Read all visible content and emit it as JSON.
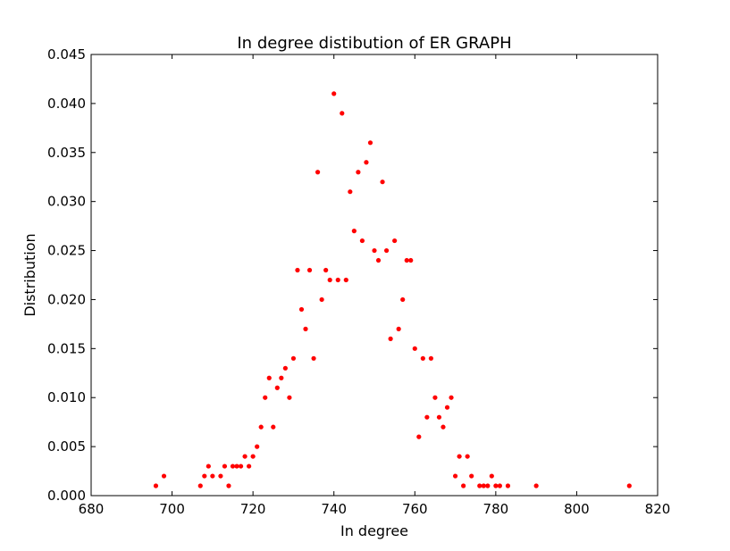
{
  "chart_data": {
    "type": "scatter",
    "title": "In degree distibution of ER GRAPH",
    "xlabel": "In degree",
    "ylabel": "Distribution",
    "xlim": [
      680,
      820
    ],
    "ylim": [
      0,
      0.045
    ],
    "xticks": [
      "680",
      "700",
      "720",
      "740",
      "760",
      "780",
      "800",
      "820"
    ],
    "yticks": [
      "0.000",
      "0.005",
      "0.010",
      "0.015",
      "0.020",
      "0.025",
      "0.030",
      "0.035",
      "0.040",
      "0.045"
    ],
    "grid": false,
    "marker_color": "#ff0000",
    "points": [
      [
        696,
        0.001
      ],
      [
        698,
        0.002
      ],
      [
        707,
        0.001
      ],
      [
        708,
        0.002
      ],
      [
        709,
        0.003
      ],
      [
        710,
        0.002
      ],
      [
        712,
        0.002
      ],
      [
        713,
        0.003
      ],
      [
        714,
        0.001
      ],
      [
        715,
        0.003
      ],
      [
        716,
        0.003
      ],
      [
        717,
        0.003
      ],
      [
        718,
        0.004
      ],
      [
        719,
        0.003
      ],
      [
        720,
        0.004
      ],
      [
        721,
        0.005
      ],
      [
        722,
        0.007
      ],
      [
        723,
        0.01
      ],
      [
        724,
        0.012
      ],
      [
        725,
        0.007
      ],
      [
        726,
        0.011
      ],
      [
        727,
        0.012
      ],
      [
        728,
        0.013
      ],
      [
        729,
        0.01
      ],
      [
        730,
        0.014
      ],
      [
        731,
        0.023
      ],
      [
        732,
        0.019
      ],
      [
        733,
        0.017
      ],
      [
        734,
        0.023
      ],
      [
        735,
        0.014
      ],
      [
        736,
        0.033
      ],
      [
        737,
        0.02
      ],
      [
        738,
        0.023
      ],
      [
        739,
        0.022
      ],
      [
        740,
        0.041
      ],
      [
        741,
        0.022
      ],
      [
        742,
        0.039
      ],
      [
        743,
        0.022
      ],
      [
        744,
        0.031
      ],
      [
        745,
        0.027
      ],
      [
        746,
        0.033
      ],
      [
        747,
        0.026
      ],
      [
        748,
        0.034
      ],
      [
        749,
        0.036
      ],
      [
        750,
        0.025
      ],
      [
        751,
        0.024
      ],
      [
        752,
        0.032
      ],
      [
        753,
        0.025
      ],
      [
        754,
        0.016
      ],
      [
        755,
        0.026
      ],
      [
        756,
        0.017
      ],
      [
        757,
        0.02
      ],
      [
        758,
        0.024
      ],
      [
        759,
        0.024
      ],
      [
        760,
        0.015
      ],
      [
        761,
        0.006
      ],
      [
        762,
        0.014
      ],
      [
        763,
        0.008
      ],
      [
        764,
        0.014
      ],
      [
        765,
        0.01
      ],
      [
        766,
        0.008
      ],
      [
        767,
        0.007
      ],
      [
        768,
        0.009
      ],
      [
        769,
        0.01
      ],
      [
        770,
        0.002
      ],
      [
        771,
        0.004
      ],
      [
        772,
        0.001
      ],
      [
        773,
        0.004
      ],
      [
        774,
        0.002
      ],
      [
        776,
        0.001
      ],
      [
        777,
        0.001
      ],
      [
        778,
        0.001
      ],
      [
        779,
        0.002
      ],
      [
        780,
        0.001
      ],
      [
        781,
        0.001
      ],
      [
        783,
        0.001
      ],
      [
        790,
        0.001
      ],
      [
        813,
        0.001
      ]
    ]
  }
}
